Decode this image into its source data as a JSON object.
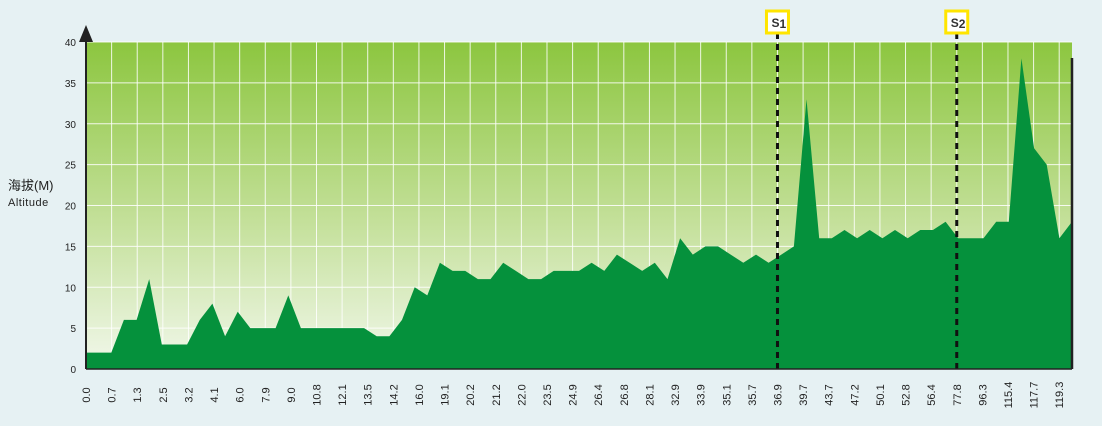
{
  "chart_data": {
    "type": "area",
    "ylabel_cn": "海拔(M)",
    "ylabel_en": "Altitude",
    "ylim": [
      0,
      40
    ],
    "y_ticks": [
      "0",
      "5",
      "10",
      "15",
      "20",
      "25",
      "30",
      "35",
      "40"
    ],
    "x_tick_labels": [
      "0.0",
      "0.7",
      "1.3",
      "2.5",
      "3.2",
      "4.1",
      "6.0",
      "7.9",
      "9.0",
      "10.8",
      "12.1",
      "13.5",
      "14.2",
      "16.0",
      "19.1",
      "20.2",
      "21.2",
      "22.0",
      "23.5",
      "24.9",
      "26.4",
      "26.8",
      "28.1",
      "32.9",
      "33.9",
      "35.1",
      "35.7",
      "36.9",
      "39.7",
      "43.7",
      "47.2",
      "50.1",
      "52.8",
      "56.4",
      "77.8",
      "96.3",
      "115.4",
      "117.7",
      "119.3"
    ],
    "grid": true,
    "colors": {
      "area_fill": "#05913c",
      "background_top": "#8cc63f",
      "background_bottom": "#f2f8ec",
      "grid": "#ffffff",
      "marker_box": "#ffe500",
      "axis": "#222222"
    },
    "series": [
      {
        "values": [
          2,
          2,
          2,
          6,
          6,
          11,
          3,
          3,
          3,
          6,
          8,
          4,
          7,
          5,
          5,
          5,
          9,
          5,
          5,
          5,
          5,
          5,
          5,
          4,
          4,
          6,
          10,
          9,
          13,
          12,
          12,
          11,
          11,
          13,
          12,
          11,
          11,
          12,
          12,
          12,
          13,
          12,
          14,
          13,
          12,
          13,
          11,
          16,
          14,
          15,
          15,
          14,
          13,
          14,
          13,
          14,
          15,
          33,
          16,
          16,
          17,
          16,
          17,
          16,
          17,
          16,
          17,
          17,
          18,
          16,
          16,
          16,
          18,
          18,
          38,
          27,
          25,
          16,
          18
        ]
      }
    ],
    "markers": [
      {
        "label": "S",
        "sub": "1",
        "at_x": "36.9"
      },
      {
        "label": "S",
        "sub": "2",
        "at_x": "77.8"
      }
    ]
  }
}
